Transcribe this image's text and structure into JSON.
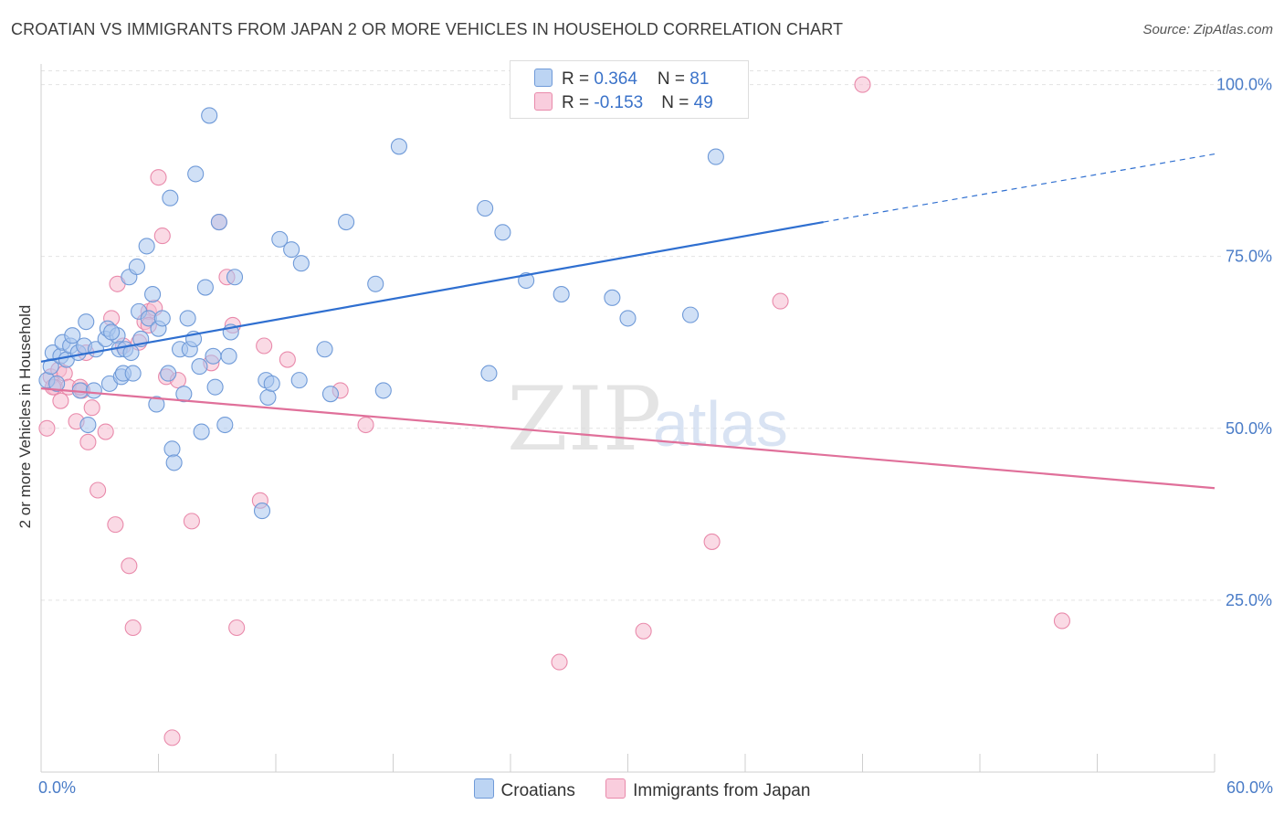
{
  "header": {
    "title": "CROATIAN VS IMMIGRANTS FROM JAPAN 2 OR MORE VEHICLES IN HOUSEHOLD CORRELATION CHART",
    "source": "Source: ZipAtlas.com"
  },
  "watermark": {
    "zip": "ZIP",
    "atlas": "atlas"
  },
  "colors": {
    "blue_fill": "#a9c7ef",
    "blue_stroke": "#6f9ad8",
    "blue_line": "#2f6fd0",
    "pink_fill": "#f6bcd0",
    "pink_stroke": "#e98aab",
    "pink_line": "#e0709a",
    "grid": "#e3e3e3",
    "tick_label": "#4a7cc7"
  },
  "legend": {
    "rows": [
      {
        "r_label": "R = ",
        "r_value": "0.364",
        "n_label": "N = ",
        "n_value": "81"
      },
      {
        "r_label": "R = ",
        "r_value": "-0.153",
        "n_label": "N = ",
        "n_value": "49"
      }
    ]
  },
  "bottom_legend": [
    {
      "label": "Croatians"
    },
    {
      "label": "Immigrants from Japan"
    }
  ],
  "chart_data": {
    "type": "scatter",
    "title": "CROATIAN VS IMMIGRANTS FROM JAPAN 2 OR MORE VEHICLES IN HOUSEHOLD CORRELATION CHART",
    "xlabel": "",
    "ylabel": "2 or more Vehicles in Household",
    "xlim": [
      0,
      60
    ],
    "ylim": [
      0,
      103
    ],
    "x_tick_labels": [
      "0.0%",
      "60.0%"
    ],
    "y_ticks": [
      25,
      50,
      75,
      100
    ],
    "y_tick_labels": [
      "25.0%",
      "50.0%",
      "75.0%",
      "100.0%"
    ],
    "grid": true,
    "legend_position": "top-center",
    "series": [
      {
        "name": "Croatians",
        "r": 0.364,
        "n": 81,
        "trend": {
          "x0": 0,
          "y0": 59.7,
          "x1": 40,
          "y1": 80.0,
          "dashed_to_x": 60,
          "dashed_to_y": 89.9
        },
        "points": [
          [
            0.3,
            57
          ],
          [
            0.5,
            59
          ],
          [
            0.6,
            61
          ],
          [
            0.8,
            56.5
          ],
          [
            1.0,
            60.5
          ],
          [
            1.1,
            62.5
          ],
          [
            1.3,
            60
          ],
          [
            1.5,
            62
          ],
          [
            1.6,
            63.5
          ],
          [
            1.9,
            61
          ],
          [
            2.0,
            55.5
          ],
          [
            2.2,
            62
          ],
          [
            2.3,
            65.5
          ],
          [
            2.4,
            50.5
          ],
          [
            2.7,
            55.5
          ],
          [
            2.8,
            61.5
          ],
          [
            3.3,
            63
          ],
          [
            3.4,
            64.5
          ],
          [
            3.5,
            56.5
          ],
          [
            3.9,
            63.5
          ],
          [
            4.0,
            61.5
          ],
          [
            4.1,
            57.5
          ],
          [
            4.2,
            58
          ],
          [
            4.3,
            61.5
          ],
          [
            4.5,
            72
          ],
          [
            4.6,
            61
          ],
          [
            4.7,
            58
          ],
          [
            4.9,
            73.5
          ],
          [
            5.0,
            67
          ],
          [
            5.1,
            63
          ],
          [
            5.4,
            76.5
          ],
          [
            5.5,
            66
          ],
          [
            5.7,
            69.5
          ],
          [
            5.9,
            53.5
          ],
          [
            6.0,
            64.5
          ],
          [
            6.2,
            66
          ],
          [
            6.5,
            58
          ],
          [
            6.6,
            83.5
          ],
          [
            6.7,
            47
          ],
          [
            6.8,
            45
          ],
          [
            7.1,
            61.5
          ],
          [
            7.3,
            55
          ],
          [
            7.5,
            66
          ],
          [
            7.6,
            61.5
          ],
          [
            7.8,
            63
          ],
          [
            7.9,
            87
          ],
          [
            8.1,
            59
          ],
          [
            8.2,
            49.5
          ],
          [
            8.4,
            70.5
          ],
          [
            8.6,
            95.5
          ],
          [
            8.8,
            60.5
          ],
          [
            8.9,
            56
          ],
          [
            9.1,
            80
          ],
          [
            9.4,
            50.5
          ],
          [
            9.6,
            60.5
          ],
          [
            9.7,
            64
          ],
          [
            9.9,
            72
          ],
          [
            11.3,
            38
          ],
          [
            11.5,
            57
          ],
          [
            11.6,
            54.5
          ],
          [
            11.8,
            56.5
          ],
          [
            12.2,
            77.5
          ],
          [
            12.8,
            76
          ],
          [
            13.2,
            57
          ],
          [
            13.3,
            74
          ],
          [
            14.5,
            61.5
          ],
          [
            14.8,
            55
          ],
          [
            15.6,
            80
          ],
          [
            17.1,
            71
          ],
          [
            17.5,
            55.5
          ],
          [
            18.3,
            91
          ],
          [
            22.7,
            82
          ],
          [
            22.9,
            58
          ],
          [
            23.6,
            78.5
          ],
          [
            24.8,
            71.5
          ],
          [
            26.6,
            69.5
          ],
          [
            29.2,
            69
          ],
          [
            33.2,
            66.5
          ],
          [
            34.5,
            89.5
          ],
          [
            30.0,
            66
          ],
          [
            3.6,
            64
          ]
        ]
      },
      {
        "name": "Immigrants from Japan",
        "r": -0.153,
        "n": 49,
        "trend": {
          "x0": 0,
          "y0": 55.8,
          "x1": 60,
          "y1": 41.3
        },
        "points": [
          [
            0.3,
            50
          ],
          [
            0.5,
            57.5
          ],
          [
            0.7,
            56
          ],
          [
            0.9,
            58.5
          ],
          [
            1.0,
            54
          ],
          [
            1.2,
            58
          ],
          [
            1.4,
            56
          ],
          [
            1.8,
            51
          ],
          [
            2.1,
            55.5
          ],
          [
            2.3,
            61
          ],
          [
            2.4,
            48
          ],
          [
            2.6,
            53
          ],
          [
            2.9,
            41
          ],
          [
            3.3,
            49.5
          ],
          [
            3.6,
            66
          ],
          [
            3.8,
            36
          ],
          [
            3.9,
            71
          ],
          [
            4.2,
            62
          ],
          [
            4.5,
            30
          ],
          [
            4.7,
            21
          ],
          [
            5.0,
            62.5
          ],
          [
            5.3,
            65.5
          ],
          [
            5.5,
            67
          ],
          [
            5.8,
            67.5
          ],
          [
            6.0,
            86.5
          ],
          [
            6.2,
            78
          ],
          [
            6.4,
            57.5
          ],
          [
            6.7,
            5
          ],
          [
            7.0,
            57
          ],
          [
            7.7,
            36.5
          ],
          [
            8.7,
            59.5
          ],
          [
            9.1,
            80
          ],
          [
            9.5,
            72
          ],
          [
            9.8,
            65
          ],
          [
            10.0,
            21
          ],
          [
            11.2,
            39.5
          ],
          [
            11.4,
            62
          ],
          [
            12.6,
            60
          ],
          [
            15.3,
            55.5
          ],
          [
            16.6,
            50.5
          ],
          [
            26.5,
            16
          ],
          [
            30.8,
            20.5
          ],
          [
            34.3,
            33.5
          ],
          [
            37.8,
            68.5
          ],
          [
            42.0,
            100
          ],
          [
            52.2,
            22
          ],
          [
            5.5,
            65
          ],
          [
            0.6,
            56
          ],
          [
            2.0,
            56
          ]
        ]
      }
    ]
  },
  "axes": {
    "ylabel": "2 or more Vehicles in Household",
    "x_min_label": "0.0%",
    "x_max_label": "60.0%"
  }
}
